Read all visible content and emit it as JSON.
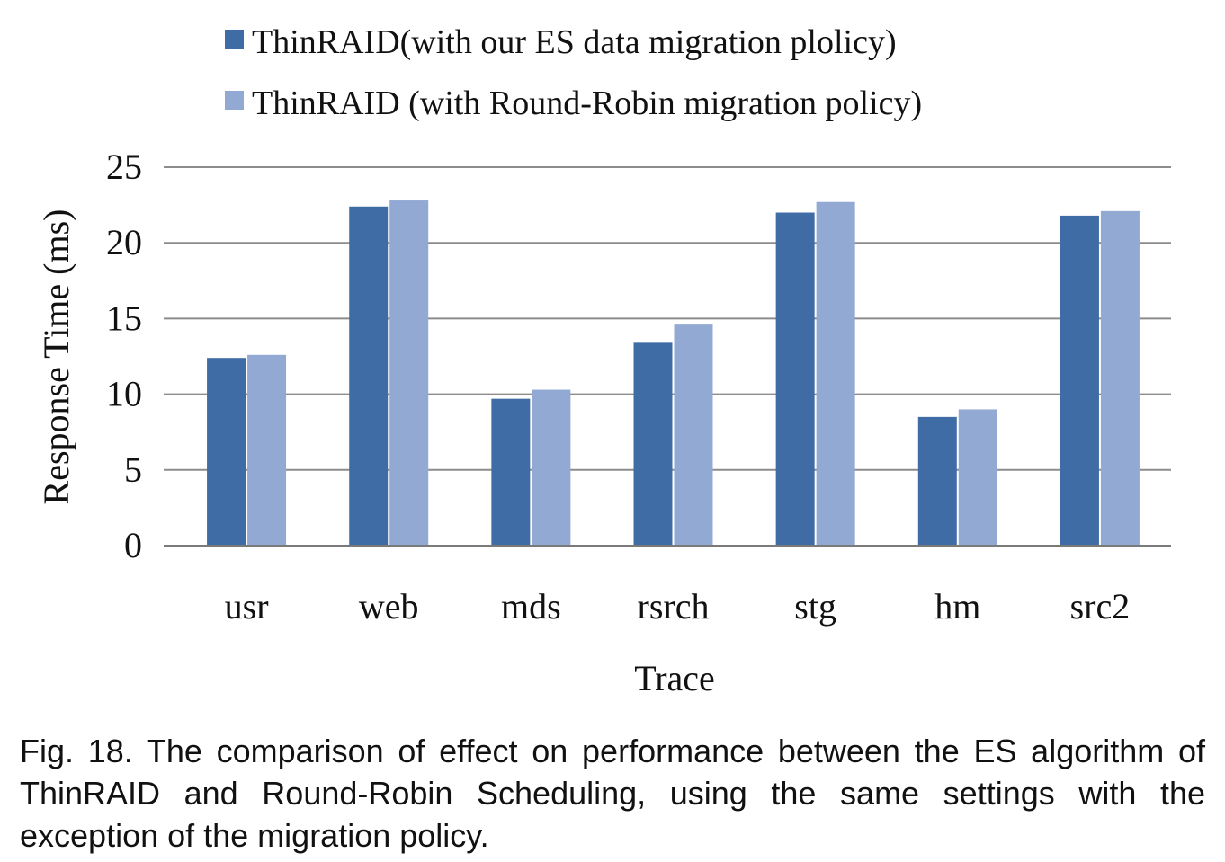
{
  "chart_data": {
    "type": "bar",
    "categories": [
      "usr",
      "web",
      "mds",
      "rsrch",
      "stg",
      "hm",
      "src2"
    ],
    "series": [
      {
        "name": "ThinRAID(with our ES data migration plolicy)",
        "color": "#3F6CA5",
        "values": [
          12.4,
          22.4,
          9.7,
          13.4,
          22.0,
          8.5,
          21.8
        ]
      },
      {
        "name": "ThinRAID (with Round-Robin migration policy)",
        "color": "#92A9D3",
        "values": [
          12.6,
          22.8,
          10.3,
          14.6,
          22.7,
          9.0,
          22.1
        ]
      }
    ],
    "ylim": [
      0,
      25
    ],
    "yticks": [
      0,
      5,
      10,
      15,
      20,
      25
    ],
    "xlabel": "Trace",
    "ylabel": "Response Time (ms)",
    "grid": true,
    "legend_position": "top-center"
  },
  "caption": "Fig. 18. The comparison of effect on performance between the ES algorithm of ThinRAID and Round-Robin Scheduling, using the same settings with the exception of the migration policy."
}
